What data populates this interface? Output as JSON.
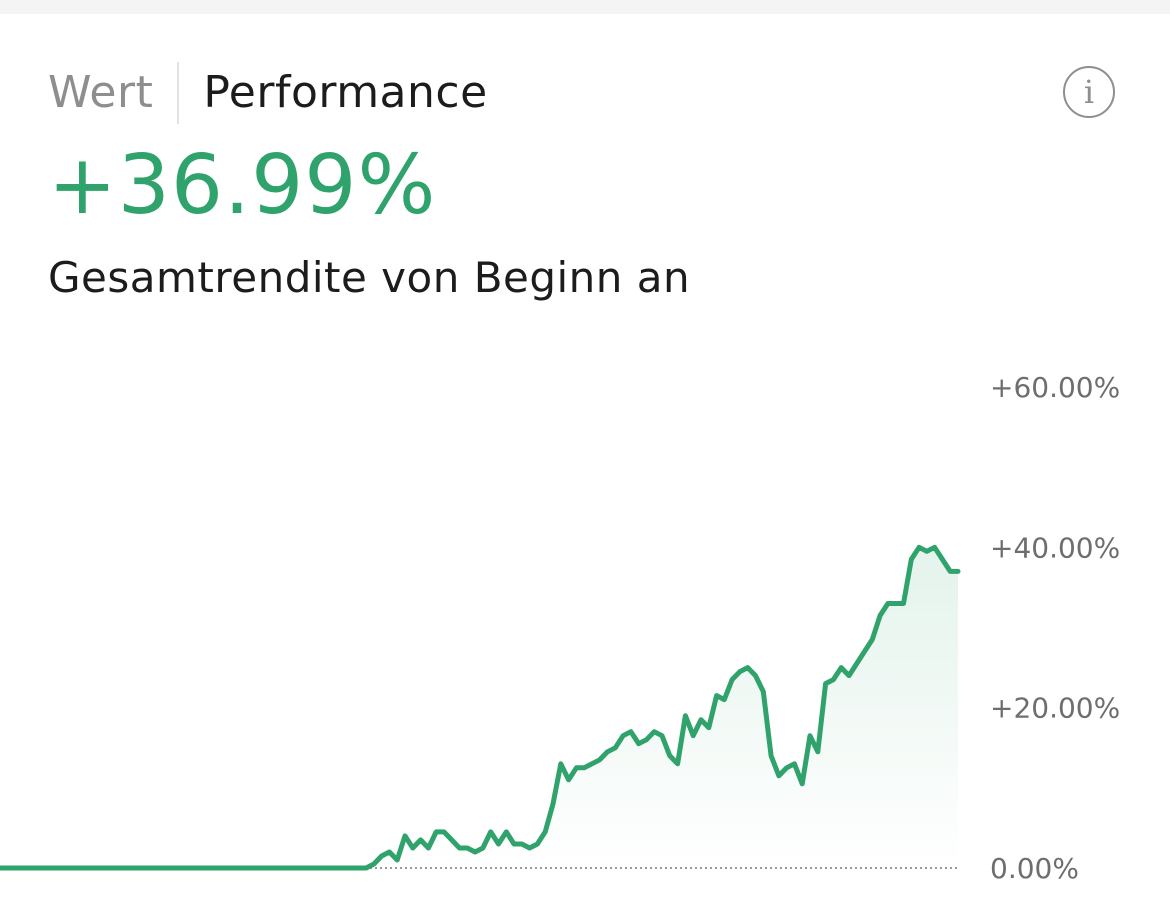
{
  "tabs": [
    {
      "label": "Wert",
      "active": false
    },
    {
      "label": "Performance",
      "active": true
    }
  ],
  "info_icon": "info-icon",
  "info_glyph": "i",
  "headline_value": "+36.99%",
  "subtitle": "Gesamtrendite von Beginn an",
  "colors": {
    "accent": "#2fa36b",
    "tick_text": "#6e6e6e",
    "inactive_tab": "#8e8e8e",
    "active_tab": "#1c1c1c"
  },
  "chart_data": {
    "type": "line",
    "title": "",
    "xlabel": "",
    "ylabel": "",
    "ylim": [
      0,
      60
    ],
    "yticks": [
      {
        "value": 60,
        "label": "+60.00%"
      },
      {
        "value": 40,
        "label": "+40.00%"
      },
      {
        "value": 20,
        "label": "+20.00%"
      },
      {
        "value": 0,
        "label": "0.00%"
      }
    ],
    "baseline": 0,
    "area_fill": true,
    "grid": false,
    "series": [
      {
        "values": [
          0,
          0,
          0,
          0,
          0,
          0,
          0,
          0,
          0,
          0,
          0,
          0,
          0,
          0,
          0,
          0,
          0,
          0,
          0,
          0,
          0,
          0,
          0,
          0,
          0,
          0,
          0,
          0,
          0,
          0,
          0,
          0,
          0,
          0,
          0,
          0,
          0,
          0,
          0,
          0,
          0,
          0,
          0,
          0,
          0,
          0,
          0,
          0,
          0.5,
          1.5,
          2,
          1,
          4,
          2.5,
          3.5,
          2.5,
          4.5,
          4.5,
          3.5,
          2.5,
          2.5,
          2,
          2.5,
          4.5,
          3,
          4.5,
          3,
          3,
          2.5,
          3,
          4.5,
          8,
          13,
          11,
          12.5,
          12.5,
          13,
          13.5,
          14.5,
          15,
          16.5,
          17,
          15.5,
          16,
          17,
          16.5,
          14,
          13,
          19,
          16.5,
          18.5,
          17.5,
          21.5,
          21,
          23.5,
          24.5,
          25,
          24,
          22,
          14,
          11.5,
          12.5,
          13,
          10.5,
          16.5,
          14.5,
          23,
          23.5,
          25,
          24,
          25.5,
          27,
          28.5,
          31.5,
          33,
          33,
          33,
          38.5,
          40,
          39.5,
          40,
          38.5,
          37,
          37
        ]
      }
    ]
  }
}
